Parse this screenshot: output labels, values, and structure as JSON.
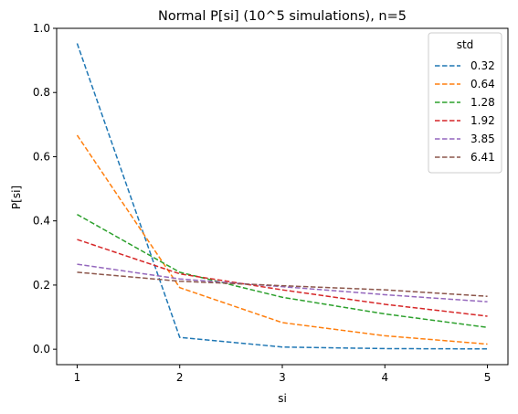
{
  "chart_data": {
    "type": "line",
    "title": "Normal P[si] (10^5 simulations), n=5",
    "xlabel": "si",
    "ylabel": "P[si]",
    "x": [
      1,
      2,
      3,
      4,
      5
    ],
    "xticks": [
      1,
      2,
      3,
      4,
      5
    ],
    "xtick_labels": [
      "1",
      "2",
      "3",
      "4",
      "5"
    ],
    "yticks": [
      0.0,
      0.2,
      0.4,
      0.6,
      0.8,
      1.0
    ],
    "ytick_labels": [
      "0.0",
      "0.2",
      "0.4",
      "0.6",
      "0.8",
      "1.0"
    ],
    "xlim": [
      0.8,
      5.2
    ],
    "ylim": [
      -0.048,
      1.0
    ],
    "grid": false,
    "line_style": "dashed",
    "legend": {
      "title": "std",
      "placement": "top-right"
    },
    "series": [
      {
        "name": "0.32",
        "color": "#1f77b4",
        "values": [
          0.953,
          0.037,
          0.007,
          0.002,
          0.001
        ]
      },
      {
        "name": "0.64",
        "color": "#ff7f0e",
        "values": [
          0.667,
          0.192,
          0.083,
          0.042,
          0.016
        ]
      },
      {
        "name": "1.28",
        "color": "#2ca02c",
        "values": [
          0.42,
          0.24,
          0.162,
          0.11,
          0.068
        ]
      },
      {
        "name": "1.92",
        "color": "#d62728",
        "values": [
          0.342,
          0.235,
          0.185,
          0.14,
          0.103
        ]
      },
      {
        "name": "3.85",
        "color": "#9467bd",
        "values": [
          0.265,
          0.219,
          0.195,
          0.17,
          0.148
        ]
      },
      {
        "name": "6.41",
        "color": "#8c564b",
        "values": [
          0.24,
          0.212,
          0.198,
          0.185,
          0.165
        ]
      }
    ]
  }
}
